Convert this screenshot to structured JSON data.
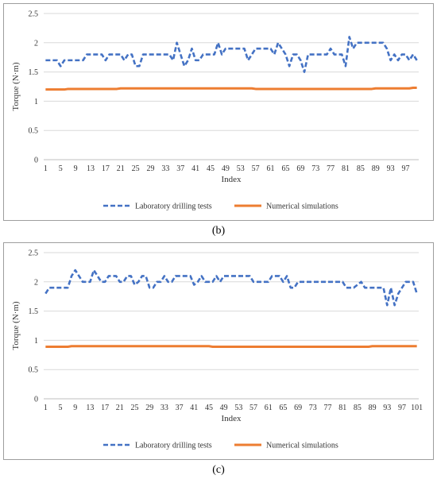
{
  "captions": {
    "b": "(b)",
    "c": "(c)"
  },
  "colors": {
    "laboratory": "#4472C4",
    "numerical": "#ED7D31",
    "grid": "#d9d9d9",
    "axis": "#bfbfbf"
  },
  "chart_data": [
    {
      "type": "line",
      "panel": "b",
      "xlabel": "Index",
      "ylabel": "Torque (N·m)",
      "ylim": [
        0,
        2.5
      ],
      "yticks": [
        "0",
        "0.5",
        "1",
        "1.5",
        "2",
        "2.5"
      ],
      "xtick_labels": [
        "1",
        "5",
        "9",
        "13",
        "17",
        "21",
        "25",
        "29",
        "33",
        "37",
        "41",
        "45",
        "49",
        "53",
        "57",
        "61",
        "65",
        "69",
        "73",
        "77",
        "81",
        "85",
        "89",
        "93",
        "97"
      ],
      "grid": true,
      "legend": "bottom",
      "x": [
        1,
        2,
        3,
        4,
        5,
        6,
        7,
        8,
        9,
        10,
        11,
        12,
        13,
        14,
        15,
        16,
        17,
        18,
        19,
        20,
        21,
        22,
        23,
        24,
        25,
        26,
        27,
        28,
        29,
        30,
        31,
        32,
        33,
        34,
        35,
        36,
        37,
        38,
        39,
        40,
        41,
        42,
        43,
        44,
        45,
        46,
        47,
        48,
        49,
        50,
        51,
        52,
        53,
        54,
        55,
        56,
        57,
        58,
        59,
        60,
        61,
        62,
        63,
        64,
        65,
        66,
        67,
        68,
        69,
        70,
        71,
        72,
        73,
        74,
        75,
        76,
        77,
        78,
        79,
        80,
        81,
        82,
        83,
        84,
        85,
        86,
        87,
        88,
        89,
        90,
        91,
        92,
        93,
        94,
        95,
        96,
        97,
        98,
        99,
        100
      ],
      "series": [
        {
          "name": "Laboratory drilling tests",
          "style": "dashed",
          "values": [
            1.7,
            1.7,
            1.7,
            1.7,
            1.6,
            1.7,
            1.7,
            1.7,
            1.7,
            1.7,
            1.7,
            1.8,
            1.8,
            1.8,
            1.8,
            1.8,
            1.7,
            1.8,
            1.8,
            1.8,
            1.8,
            1.7,
            1.8,
            1.8,
            1.6,
            1.6,
            1.8,
            1.8,
            1.8,
            1.8,
            1.8,
            1.8,
            1.8,
            1.8,
            1.7,
            2.0,
            1.8,
            1.6,
            1.7,
            1.9,
            1.7,
            1.7,
            1.8,
            1.8,
            1.8,
            1.8,
            2.0,
            1.8,
            1.9,
            1.9,
            1.9,
            1.9,
            1.9,
            1.9,
            1.7,
            1.8,
            1.9,
            1.9,
            1.9,
            1.9,
            1.9,
            1.8,
            2.0,
            1.9,
            1.8,
            1.6,
            1.8,
            1.8,
            1.7,
            1.5,
            1.8,
            1.8,
            1.8,
            1.8,
            1.8,
            1.8,
            1.9,
            1.8,
            1.8,
            1.8,
            1.6,
            2.1,
            1.9,
            2.0,
            2.0,
            2.0,
            2.0,
            2.0,
            2.0,
            2.0,
            2.0,
            1.9,
            1.7,
            1.8,
            1.7,
            1.8,
            1.8,
            1.7,
            1.8,
            1.7
          ]
        },
        {
          "name": "Numerical simulations",
          "style": "solid",
          "values": [
            1.2,
            1.2,
            1.2,
            1.2,
            1.2,
            1.2,
            1.21,
            1.21,
            1.21,
            1.21,
            1.21,
            1.21,
            1.21,
            1.21,
            1.21,
            1.21,
            1.21,
            1.21,
            1.21,
            1.21,
            1.22,
            1.22,
            1.22,
            1.22,
            1.22,
            1.22,
            1.22,
            1.22,
            1.22,
            1.22,
            1.22,
            1.22,
            1.22,
            1.22,
            1.22,
            1.22,
            1.22,
            1.22,
            1.22,
            1.22,
            1.22,
            1.22,
            1.22,
            1.22,
            1.22,
            1.22,
            1.22,
            1.22,
            1.22,
            1.22,
            1.22,
            1.22,
            1.22,
            1.22,
            1.22,
            1.22,
            1.21,
            1.21,
            1.21,
            1.21,
            1.21,
            1.21,
            1.21,
            1.21,
            1.21,
            1.21,
            1.21,
            1.21,
            1.21,
            1.21,
            1.21,
            1.21,
            1.21,
            1.21,
            1.21,
            1.21,
            1.21,
            1.21,
            1.21,
            1.21,
            1.21,
            1.21,
            1.21,
            1.21,
            1.21,
            1.21,
            1.21,
            1.21,
            1.22,
            1.22,
            1.22,
            1.22,
            1.22,
            1.22,
            1.22,
            1.22,
            1.22,
            1.22,
            1.23,
            1.23
          ]
        }
      ]
    },
    {
      "type": "line",
      "panel": "c",
      "xlabel": "Index",
      "ylabel": "Torque (N·m)",
      "ylim": [
        0,
        2.5
      ],
      "yticks": [
        "0",
        "0.5",
        "1",
        "1.5",
        "2",
        "2.5"
      ],
      "xtick_labels": [
        "1",
        "5",
        "9",
        "13",
        "17",
        "21",
        "25",
        "29",
        "33",
        "37",
        "41",
        "45",
        "49",
        "53",
        "57",
        "61",
        "65",
        "69",
        "73",
        "77",
        "81",
        "85",
        "89",
        "93",
        "97",
        "101"
      ],
      "grid": true,
      "legend": "bottom",
      "x": [
        1,
        2,
        3,
        4,
        5,
        6,
        7,
        8,
        9,
        10,
        11,
        12,
        13,
        14,
        15,
        16,
        17,
        18,
        19,
        20,
        21,
        22,
        23,
        24,
        25,
        26,
        27,
        28,
        29,
        30,
        31,
        32,
        33,
        34,
        35,
        36,
        37,
        38,
        39,
        40,
        41,
        42,
        43,
        44,
        45,
        46,
        47,
        48,
        49,
        50,
        51,
        52,
        53,
        54,
        55,
        56,
        57,
        58,
        59,
        60,
        61,
        62,
        63,
        64,
        65,
        66,
        67,
        68,
        69,
        70,
        71,
        72,
        73,
        74,
        75,
        76,
        77,
        78,
        79,
        80,
        81,
        82,
        83,
        84,
        85,
        86,
        87,
        88,
        89,
        90,
        91,
        92,
        93,
        94,
        95,
        96,
        97,
        98,
        99,
        100,
        101
      ],
      "series": [
        {
          "name": "Laboratory drilling tests",
          "style": "dashed",
          "values": [
            1.8,
            1.9,
            1.9,
            1.9,
            1.9,
            1.9,
            1.9,
            2.1,
            2.2,
            2.1,
            2.0,
            2.0,
            2.0,
            2.2,
            2.1,
            2.0,
            2.0,
            2.1,
            2.1,
            2.1,
            2.0,
            2.0,
            2.1,
            2.1,
            1.95,
            2.0,
            2.1,
            2.1,
            1.9,
            1.9,
            2.0,
            2.0,
            2.1,
            2.0,
            2.0,
            2.1,
            2.1,
            2.1,
            2.1,
            2.1,
            1.95,
            2.0,
            2.1,
            2.0,
            2.0,
            2.0,
            2.1,
            2.0,
            2.1,
            2.1,
            2.1,
            2.1,
            2.1,
            2.1,
            2.1,
            2.1,
            2.0,
            2.0,
            2.0,
            2.0,
            2.0,
            2.1,
            2.1,
            2.1,
            2.0,
            2.1,
            1.9,
            1.9,
            2.0,
            2.0,
            2.0,
            2.0,
            2.0,
            2.0,
            2.0,
            2.0,
            2.0,
            2.0,
            2.0,
            2.0,
            2.0,
            1.9,
            1.9,
            1.9,
            1.95,
            2.0,
            1.9,
            1.9,
            1.9,
            1.9,
            1.9,
            1.9,
            1.6,
            1.9,
            1.6,
            1.8,
            1.9,
            2.0,
            2.0,
            2.0,
            1.8
          ]
        },
        {
          "name": "Numerical simulations",
          "style": "solid",
          "values": [
            0.89,
            0.89,
            0.89,
            0.89,
            0.89,
            0.89,
            0.89,
            0.9,
            0.9,
            0.9,
            0.9,
            0.9,
            0.9,
            0.9,
            0.9,
            0.9,
            0.9,
            0.9,
            0.9,
            0.9,
            0.9,
            0.9,
            0.9,
            0.9,
            0.9,
            0.9,
            0.9,
            0.9,
            0.9,
            0.9,
            0.9,
            0.9,
            0.9,
            0.9,
            0.9,
            0.9,
            0.9,
            0.9,
            0.9,
            0.9,
            0.9,
            0.9,
            0.9,
            0.9,
            0.9,
            0.89,
            0.89,
            0.89,
            0.89,
            0.89,
            0.89,
            0.89,
            0.89,
            0.89,
            0.89,
            0.89,
            0.89,
            0.89,
            0.89,
            0.89,
            0.89,
            0.89,
            0.89,
            0.89,
            0.89,
            0.89,
            0.89,
            0.89,
            0.89,
            0.89,
            0.89,
            0.89,
            0.89,
            0.89,
            0.89,
            0.89,
            0.89,
            0.89,
            0.89,
            0.89,
            0.89,
            0.89,
            0.89,
            0.89,
            0.89,
            0.89,
            0.89,
            0.89,
            0.9,
            0.9,
            0.9,
            0.9,
            0.9,
            0.9,
            0.9,
            0.9,
            0.9,
            0.9,
            0.9,
            0.9,
            0.9
          ]
        }
      ]
    }
  ]
}
